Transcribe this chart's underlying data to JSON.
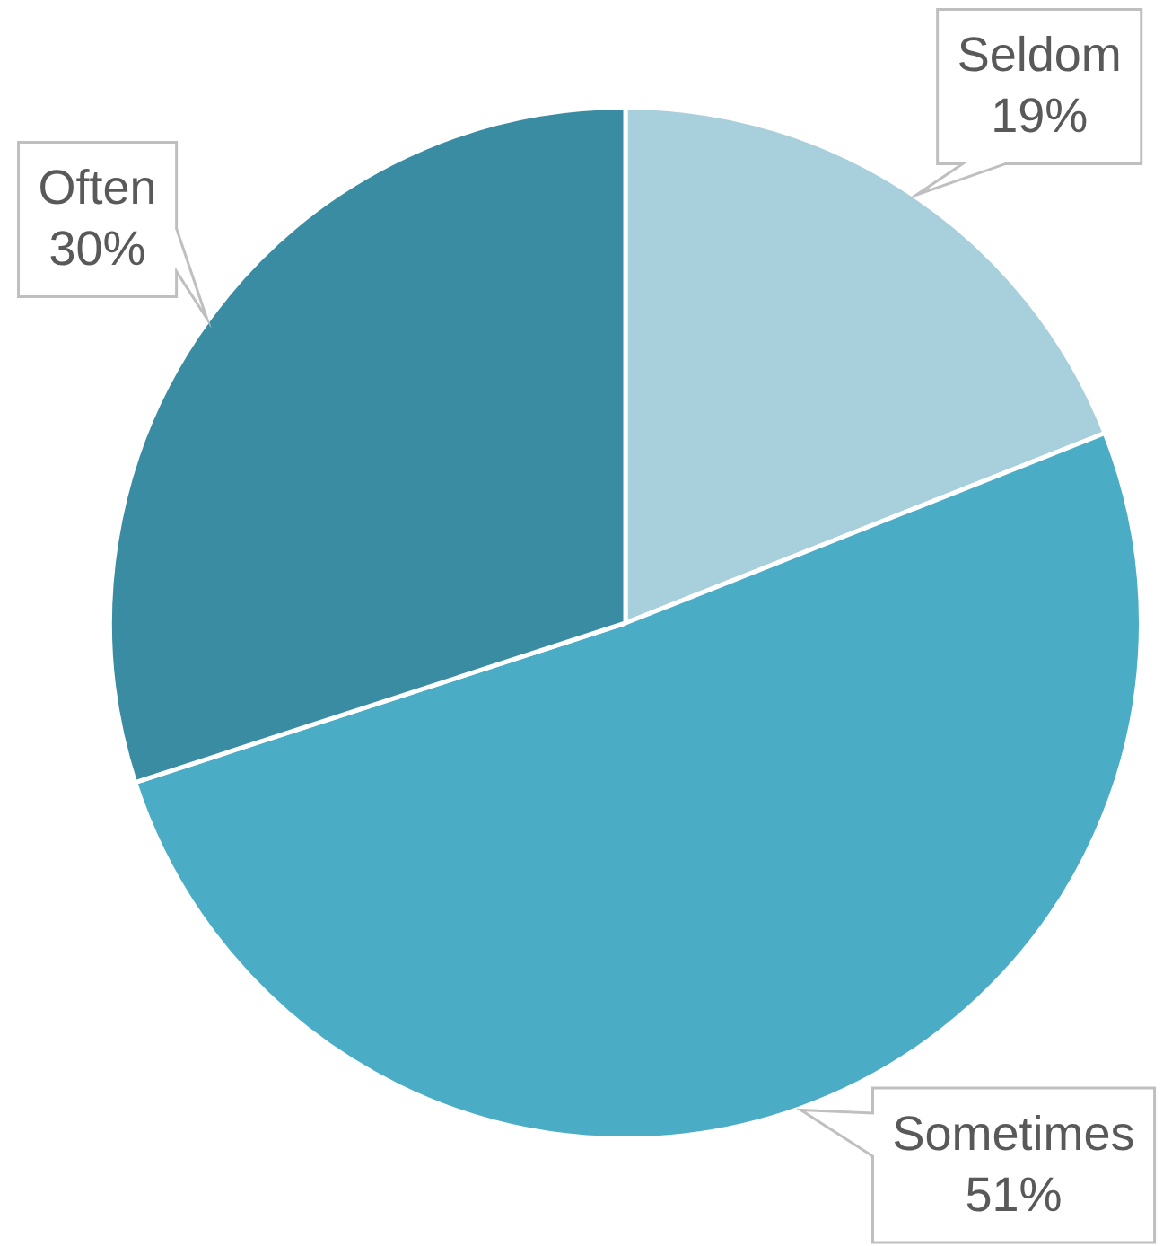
{
  "chart_data": {
    "type": "pie",
    "categories": [
      "Seldom",
      "Sometimes",
      "Often"
    ],
    "values": [
      19,
      51,
      30
    ],
    "colors": [
      "#a8cfdc",
      "#4bacc6",
      "#3a8ca3"
    ],
    "value_labels": [
      "19%",
      "51%",
      "30%"
    ],
    "legend": false
  }
}
